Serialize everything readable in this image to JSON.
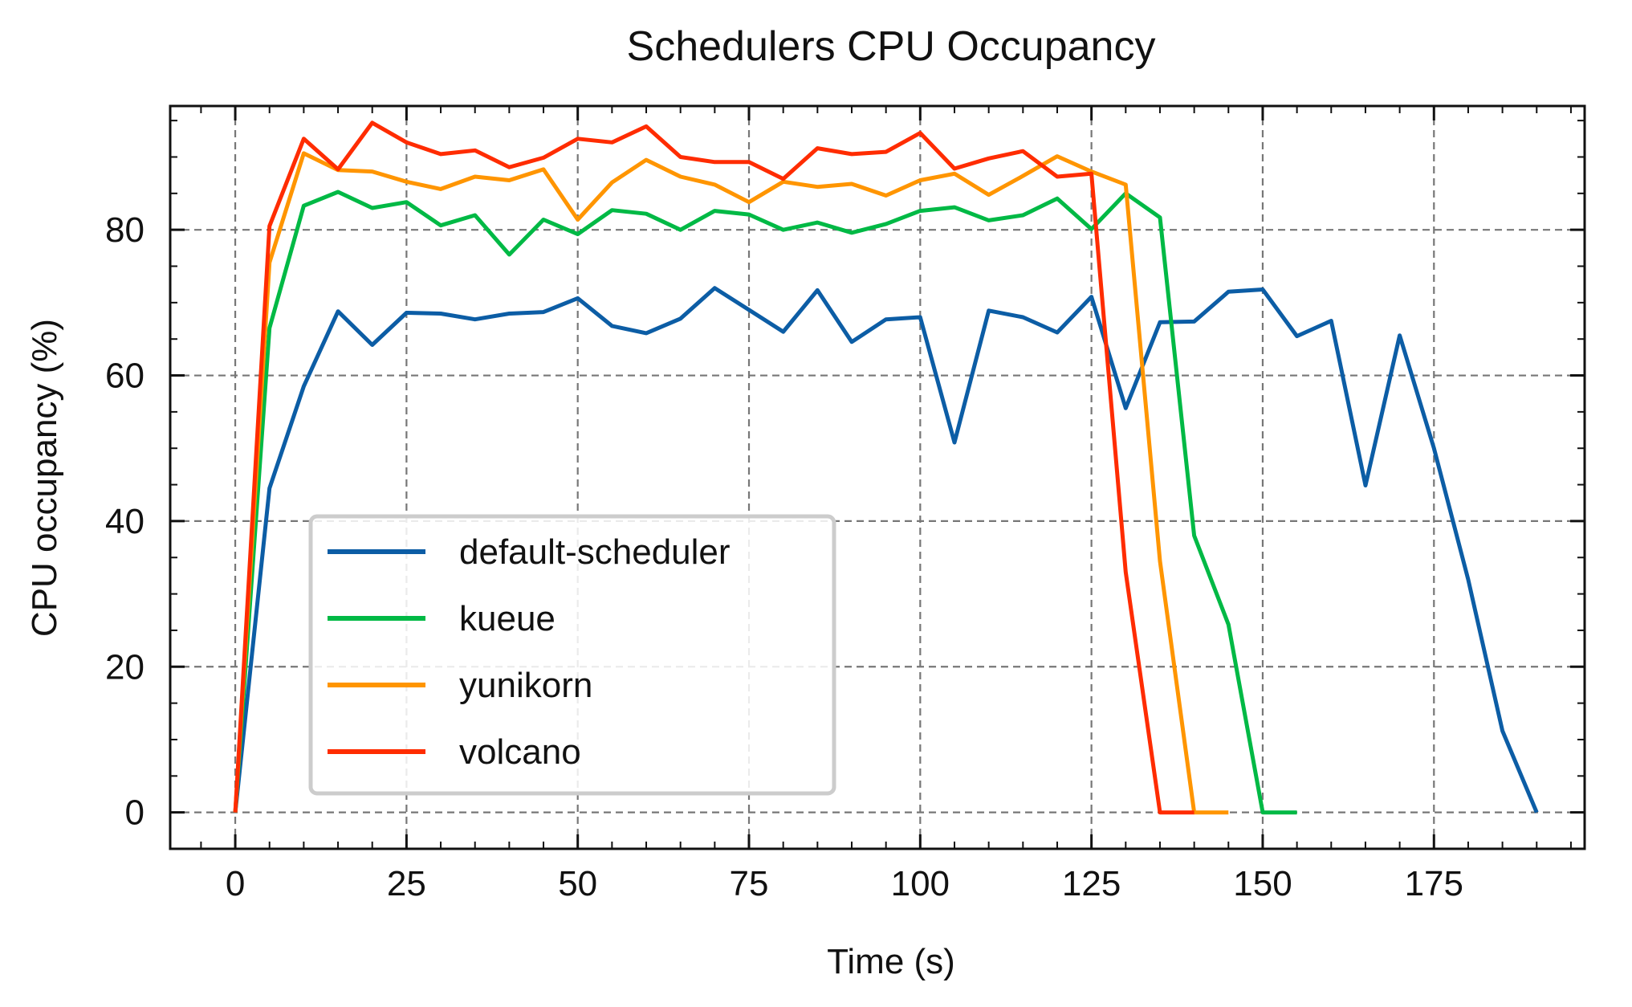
{
  "chart_data": {
    "type": "line",
    "title": "Schedulers CPU Occupancy",
    "xlabel": "Time (s)",
    "ylabel": "CPU occupancy (%)",
    "xlim": [
      -9.5,
      197
    ],
    "ylim": [
      -5,
      97
    ],
    "xticks": [
      0,
      25,
      50,
      75,
      100,
      125,
      150,
      175
    ],
    "yticks": [
      0,
      20,
      40,
      60,
      80
    ],
    "grid": true,
    "legend_position": "lower-left",
    "series": [
      {
        "name": "default-scheduler",
        "color": "#0C5DA5",
        "x": [
          0,
          5,
          10,
          15,
          20,
          25,
          30,
          35,
          40,
          45,
          50,
          55,
          60,
          65,
          70,
          75,
          80,
          85,
          90,
          95,
          100,
          105,
          110,
          115,
          120,
          125,
          130,
          135,
          140,
          145,
          150,
          155,
          160,
          165,
          170,
          175,
          180,
          185,
          190
        ],
        "y": [
          0,
          44.5,
          58.5,
          68.8,
          64.2,
          68.6,
          68.5,
          67.7,
          68.5,
          68.7,
          70.6,
          66.8,
          65.8,
          67.8,
          72.0,
          69.0,
          66.0,
          71.7,
          64.6,
          67.7,
          68.0,
          50.8,
          68.9,
          68.0,
          65.9,
          70.8,
          55.5,
          67.3,
          67.4,
          71.5,
          71.8,
          65.4,
          67.5,
          44.9,
          65.5,
          50.0,
          32.0,
          11.2,
          0
        ]
      },
      {
        "name": "kueue",
        "color": "#00B945",
        "x": [
          0,
          5,
          10,
          15,
          20,
          25,
          30,
          35,
          40,
          45,
          50,
          55,
          60,
          65,
          70,
          75,
          80,
          85,
          90,
          95,
          100,
          105,
          110,
          115,
          120,
          125,
          130,
          135,
          140,
          145,
          150,
          155
        ],
        "y": [
          0,
          66.5,
          83.3,
          85.2,
          83.0,
          83.8,
          80.6,
          82.0,
          76.6,
          81.4,
          79.4,
          82.7,
          82.2,
          80.0,
          82.6,
          82.1,
          80.0,
          81.0,
          79.6,
          80.8,
          82.6,
          83.1,
          81.3,
          82.0,
          84.3,
          80.1,
          85.0,
          81.7,
          38.0,
          25.8,
          0,
          0
        ]
      },
      {
        "name": "yunikorn",
        "color": "#FF9500",
        "x": [
          0,
          5,
          10,
          15,
          20,
          25,
          30,
          35,
          40,
          45,
          50,
          55,
          60,
          65,
          70,
          75,
          80,
          85,
          90,
          95,
          100,
          105,
          110,
          115,
          120,
          125,
          130,
          135,
          140,
          145
        ],
        "y": [
          0,
          75.5,
          90.5,
          88.2,
          88.0,
          86.6,
          85.6,
          87.3,
          86.8,
          88.3,
          81.4,
          86.5,
          89.6,
          87.3,
          86.2,
          83.8,
          86.6,
          85.9,
          86.3,
          84.7,
          86.8,
          87.7,
          84.8,
          87.4,
          90.1,
          88.0,
          86.2,
          34.5,
          0,
          0
        ]
      },
      {
        "name": "volcano",
        "color": "#FF2C00",
        "x": [
          0,
          5,
          10,
          15,
          20,
          25,
          30,
          35,
          40,
          45,
          50,
          55,
          60,
          65,
          70,
          75,
          80,
          85,
          90,
          95,
          100,
          105,
          110,
          115,
          120,
          125,
          130,
          135,
          140
        ],
        "y": [
          0,
          80.5,
          92.5,
          88.3,
          94.7,
          92.0,
          90.4,
          90.9,
          88.6,
          89.9,
          92.5,
          92.0,
          94.2,
          90.0,
          89.3,
          89.3,
          87.0,
          91.2,
          90.4,
          90.7,
          93.3,
          88.4,
          89.8,
          90.8,
          87.3,
          87.7,
          33.0,
          0,
          0
        ]
      }
    ]
  }
}
